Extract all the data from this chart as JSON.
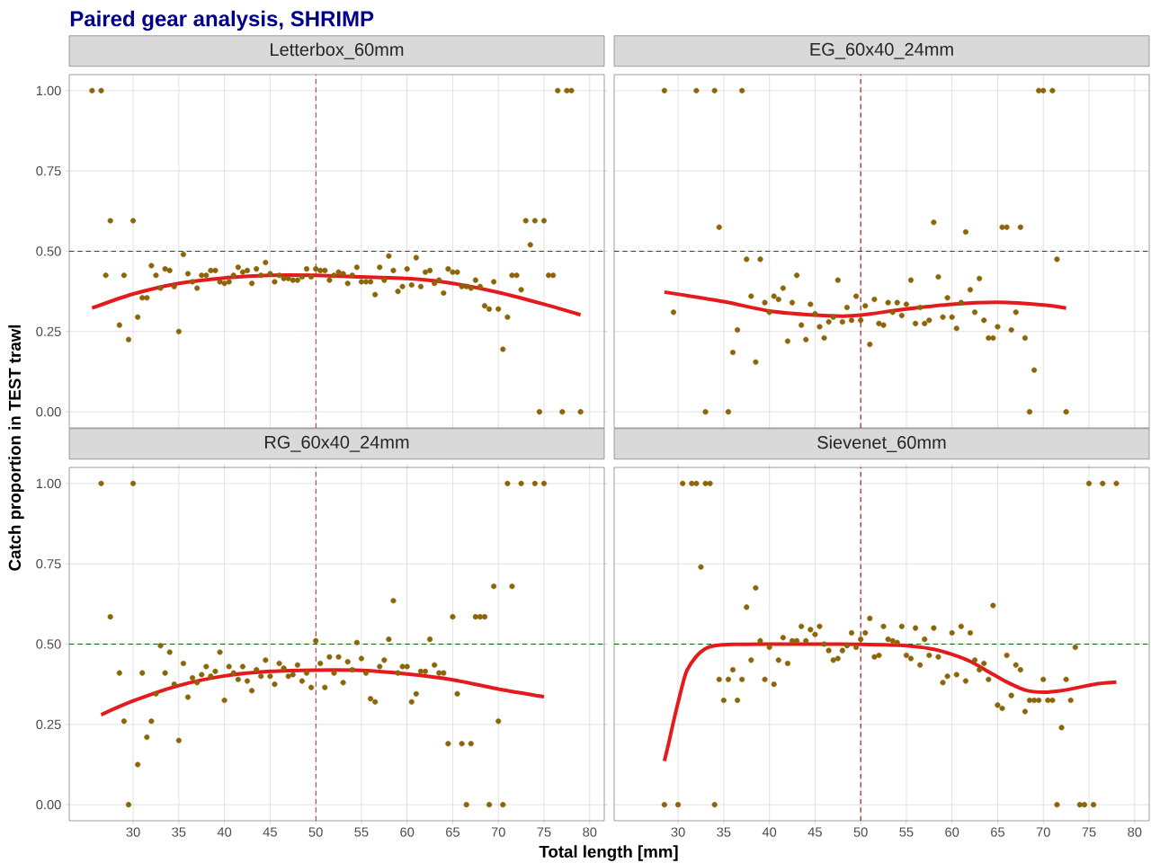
{
  "chart_data": [
    {
      "type": "scatter",
      "title": "Paired gear analysis, SHRIMP",
      "subtitle": "Letterbox_60mm",
      "ylabel": "Catch proportion in TEST trawl",
      "xlim": [
        23,
        81.6
      ],
      "ylim": [
        -0.05,
        1.05
      ],
      "xticks": [
        30,
        35,
        40,
        45,
        50,
        55,
        60,
        65,
        70,
        75,
        80
      ],
      "yticks": [
        {
          "value": 0,
          "label": "0.00"
        },
        {
          "value": 0.25,
          "label": "0.25"
        },
        {
          "value": 0.5,
          "label": "0.50"
        },
        {
          "value": 0.75,
          "label": "0.75"
        },
        {
          "value": 1,
          "label": "1.00"
        }
      ],
      "tick_labels": "y",
      "grid": true,
      "ref_lines": [
        {
          "axis": "y",
          "value": 0.5,
          "color": "#006400",
          "line_style": "dashed"
        },
        {
          "axis": "x",
          "value": 50,
          "color": "#8b0000",
          "line_style": "dashed"
        }
      ],
      "series": [
        {
          "type": "scatter",
          "marker": "circle",
          "color": "#8b6508",
          "x": [
            25.5,
            26.5,
            27,
            27.5,
            28.5,
            29,
            29.5,
            30,
            30.5,
            31,
            31.5,
            32,
            32.5,
            33,
            33.5,
            34,
            34.5,
            35,
            35.5,
            36,
            36.5,
            37,
            37.5,
            38,
            38.5,
            39,
            39.5,
            40,
            40.5,
            41,
            41.5,
            42,
            42.5,
            43,
            43.5,
            44,
            44.5,
            45,
            45.5,
            46,
            46.5,
            47,
            47.5,
            48,
            48.5,
            49,
            49.5,
            50,
            50.5,
            51,
            51.5,
            52,
            52.5,
            53,
            53.5,
            54,
            54.5,
            55,
            55.5,
            56,
            56.5,
            57,
            57.5,
            58,
            58.5,
            59,
            59.5,
            60,
            60.5,
            61,
            61.5,
            62,
            62.5,
            63,
            63.5,
            64,
            64.5,
            65,
            65.5,
            66,
            66.5,
            67,
            67.5,
            68,
            68.5,
            69,
            69.5,
            70,
            70.5,
            71,
            71.5,
            72,
            72.5,
            73,
            73.5,
            74,
            74.5,
            75,
            75.5,
            76,
            76.5,
            77,
            77.5,
            78,
            79
          ],
          "values": [
            1,
            1,
            0.425,
            0.595,
            0.27,
            0.425,
            0.225,
            0.595,
            0.295,
            0.355,
            0.355,
            0.455,
            0.425,
            0.385,
            0.445,
            0.44,
            0.39,
            0.25,
            0.49,
            0.43,
            0.405,
            0.385,
            0.425,
            0.425,
            0.44,
            0.44,
            0.405,
            0.4,
            0.405,
            0.425,
            0.45,
            0.435,
            0.44,
            0.4,
            0.445,
            0.425,
            0.465,
            0.43,
            0.405,
            0.425,
            0.415,
            0.415,
            0.41,
            0.41,
            0.42,
            0.445,
            0.42,
            0.445,
            0.44,
            0.44,
            0.41,
            0.425,
            0.435,
            0.43,
            0.4,
            0.425,
            0.45,
            0.405,
            0.405,
            0.405,
            0.365,
            0.45,
            0.41,
            0.485,
            0.44,
            0.375,
            0.39,
            0.445,
            0.395,
            0.48,
            0.39,
            0.435,
            0.44,
            0.4,
            0.41,
            0.37,
            0.445,
            0.435,
            0.435,
            0.39,
            0.39,
            0.385,
            0.41,
            0.39,
            0.33,
            0.32,
            0.405,
            0.32,
            0.195,
            0.295,
            0.425,
            0.425,
            0.38,
            0.595,
            0.52,
            0.595,
            0,
            0.595,
            0.425,
            0.425,
            1,
            0,
            1,
            1,
            0
          ]
        },
        {
          "type": "line",
          "line_style": "solid",
          "color": "#e41a1c",
          "x": [
            25.5,
            30,
            35,
            40,
            45,
            50,
            55,
            60,
            65,
            70,
            75,
            79
          ],
          "values": [
            0.323,
            0.367,
            0.4,
            0.417,
            0.425,
            0.425,
            0.42,
            0.415,
            0.4,
            0.372,
            0.335,
            0.302
          ]
        }
      ]
    },
    {
      "type": "scatter",
      "subtitle": "EG_60x40_24mm",
      "xlim": [
        23,
        81.6
      ],
      "ylim": [
        -0.05,
        1.05
      ],
      "xticks": [
        30,
        35,
        40,
        45,
        50,
        55,
        60,
        65,
        70,
        75,
        80
      ],
      "yticks": [
        {
          "value": 0,
          "label": null
        },
        {
          "value": 0.25,
          "label": null
        },
        {
          "value": 0.5,
          "label": null
        },
        {
          "value": 0.75,
          "label": null
        },
        {
          "value": 1,
          "label": null
        }
      ],
      "tick_labels": false,
      "grid": true,
      "ref_lines": [
        {
          "axis": "y",
          "value": 0.5,
          "color": "#006400",
          "line_style": "dashed"
        },
        {
          "axis": "x",
          "value": 50,
          "color": "#8b0000",
          "line_style": "dashed"
        }
      ],
      "series": [
        {
          "type": "scatter",
          "marker": "circle",
          "color": "#8b6508",
          "x": [
            28.5,
            29.5,
            32,
            33,
            34,
            34.5,
            35.5,
            36,
            36.5,
            37,
            37.5,
            38,
            38.5,
            39,
            39.5,
            40,
            40.5,
            41,
            41.5,
            42,
            42.5,
            43,
            43.5,
            44,
            44.5,
            45,
            45.5,
            46,
            46.5,
            47,
            47.5,
            48,
            48.5,
            49,
            49.5,
            50,
            50.5,
            51,
            51.5,
            52,
            52.5,
            53,
            53.5,
            54,
            54.5,
            55,
            55.5,
            56,
            56.5,
            57,
            57.5,
            58,
            58.5,
            59,
            59.5,
            60,
            60.5,
            61,
            61.5,
            62,
            62.5,
            63,
            63.5,
            64,
            64.5,
            65,
            65.5,
            66,
            66.5,
            67,
            67.5,
            68,
            68.5,
            69,
            69.5,
            70,
            71,
            71.5,
            72.5
          ],
          "values": [
            1,
            0.31,
            1,
            0,
            1,
            0.575,
            0,
            0.185,
            0.255,
            1,
            0.475,
            0.36,
            0.155,
            0.475,
            0.34,
            0.31,
            0.36,
            0.35,
            0.385,
            0.22,
            0.34,
            0.425,
            0.27,
            0.225,
            0.335,
            0.305,
            0.265,
            0.23,
            0.28,
            0.295,
            0.41,
            0.28,
            0.325,
            0.285,
            0.36,
            0.285,
            0.33,
            0.21,
            0.35,
            0.275,
            0.27,
            0.34,
            0.31,
            0.34,
            0.3,
            0.335,
            0.41,
            0.275,
            0.325,
            0.275,
            0.285,
            0.59,
            0.42,
            0.295,
            0.355,
            0.295,
            0.26,
            0.34,
            0.56,
            0.38,
            0.31,
            0.415,
            0.285,
            0.23,
            0.23,
            0.265,
            0.575,
            0.575,
            0.255,
            0.31,
            0.575,
            0.23,
            0,
            0.13,
            1,
            1,
            1,
            0.475,
            0
          ]
        },
        {
          "type": "line",
          "line_style": "solid",
          "color": "#e41a1c",
          "x": [
            28.5,
            35,
            40,
            45,
            48,
            50,
            55,
            60,
            65,
            70,
            72.5
          ],
          "values": [
            0.373,
            0.343,
            0.314,
            0.301,
            0.298,
            0.301,
            0.32,
            0.335,
            0.341,
            0.333,
            0.323
          ]
        }
      ]
    },
    {
      "type": "scatter",
      "subtitle": "RG_60x40_24mm",
      "xlim": [
        23,
        81.6
      ],
      "ylim": [
        -0.05,
        1.05
      ],
      "xticks": [
        30,
        35,
        40,
        45,
        50,
        55,
        60,
        65,
        70,
        75,
        80
      ],
      "yticks": [
        {
          "value": 0,
          "label": "0.00"
        },
        {
          "value": 0.25,
          "label": "0.25"
        },
        {
          "value": 0.5,
          "label": "0.50"
        },
        {
          "value": 0.75,
          "label": "0.75"
        },
        {
          "value": 1,
          "label": "1.00"
        }
      ],
      "grid": true,
      "ref_lines": [
        {
          "axis": "y",
          "value": 0.5,
          "color": "#006400",
          "line_style": "dashed"
        },
        {
          "axis": "x",
          "value": 50,
          "color": "#8b0000",
          "line_style": "dashed"
        }
      ],
      "series": [
        {
          "type": "scatter",
          "marker": "circle",
          "color": "#8b6508",
          "x": [
            26.5,
            27.5,
            28.5,
            29,
            29.5,
            30,
            30.5,
            31,
            31.5,
            32,
            32.5,
            33,
            33.5,
            34,
            34.5,
            35,
            35.5,
            36,
            36.5,
            37,
            37.5,
            38,
            38.5,
            39,
            39.5,
            40,
            40.5,
            41,
            41.5,
            42,
            42.5,
            43,
            43.5,
            44,
            44.5,
            45,
            45.5,
            46,
            46.5,
            47,
            47.5,
            48,
            48.5,
            49,
            49.5,
            50,
            50.5,
            51,
            51.5,
            52,
            52.5,
            53,
            53.5,
            54,
            54.5,
            55,
            55.5,
            56,
            56.5,
            57,
            57.5,
            58,
            58.5,
            59,
            59.5,
            60,
            60.5,
            61,
            61.5,
            62,
            62.5,
            63,
            63.5,
            64,
            64.5,
            65,
            65.5,
            66,
            66.5,
            67,
            67.5,
            68,
            68.5,
            69,
            69.5,
            70,
            70.5,
            71,
            71.5,
            72.5,
            74,
            75
          ],
          "values": [
            1,
            0.585,
            0.41,
            0.26,
            0,
            1,
            0.125,
            0.41,
            0.21,
            0.26,
            0.345,
            0.495,
            0.41,
            0.475,
            0.375,
            0.2,
            0.44,
            0.335,
            0.395,
            0.38,
            0.405,
            0.43,
            0.4,
            0.415,
            0.475,
            0.325,
            0.43,
            0.41,
            0.39,
            0.43,
            0.385,
            0.355,
            0.42,
            0.4,
            0.45,
            0.4,
            0.375,
            0.44,
            0.425,
            0.4,
            0.405,
            0.435,
            0.385,
            0.41,
            0.365,
            0.51,
            0.44,
            0.365,
            0.46,
            0.41,
            0.46,
            0.38,
            0.445,
            0.42,
            0.505,
            0.455,
            0.41,
            0.33,
            0.32,
            0.43,
            0.45,
            0.515,
            0.635,
            0.41,
            0.43,
            0.43,
            0.32,
            0.345,
            0.415,
            0.415,
            0.515,
            0.435,
            0.41,
            0.41,
            0.19,
            0.585,
            0.345,
            0.19,
            0,
            0.19,
            0.585,
            0.585,
            0.585,
            0,
            0.68,
            0.26,
            0,
            1,
            0.68,
            1,
            1,
            1
          ]
        },
        {
          "type": "line",
          "line_style": "solid",
          "color": "#e41a1c",
          "x": [
            26.5,
            30,
            35,
            40,
            45,
            50,
            55,
            60,
            65,
            70,
            75
          ],
          "values": [
            0.28,
            0.323,
            0.371,
            0.401,
            0.415,
            0.419,
            0.418,
            0.407,
            0.389,
            0.36,
            0.336
          ]
        }
      ]
    },
    {
      "type": "scatter",
      "subtitle": "Sievenet_60mm",
      "xlabel": "Total length [mm]",
      "xlim": [
        23,
        81.6
      ],
      "ylim": [
        -0.05,
        1.05
      ],
      "xticks": [
        30,
        35,
        40,
        45,
        50,
        55,
        60,
        65,
        70,
        75,
        80
      ],
      "yticks": [
        {
          "value": 0,
          "label": null
        },
        {
          "value": 0.25,
          "label": null
        },
        {
          "value": 0.5,
          "label": null
        },
        {
          "value": 0.75,
          "label": null
        },
        {
          "value": 1,
          "label": null
        }
      ],
      "tick_labels": "x",
      "grid": true,
      "ref_lines": [
        {
          "axis": "y",
          "value": 0.5,
          "color": "#006400",
          "line_style": "dashed"
        },
        {
          "axis": "x",
          "value": 50,
          "color": "#8b0000",
          "line_style": "dashed"
        }
      ],
      "series": [
        {
          "type": "scatter",
          "marker": "circle",
          "color": "#8b6508",
          "x": [
            28.5,
            30,
            30.5,
            31.5,
            32,
            32.5,
            33,
            33.5,
            34,
            34.5,
            35,
            35.5,
            36,
            36.5,
            37,
            37.5,
            38,
            38.5,
            39,
            39.5,
            40,
            40.5,
            41,
            41.5,
            42,
            42.5,
            43,
            43.5,
            44,
            44.5,
            45,
            45.5,
            46,
            46.5,
            47,
            47.5,
            48,
            48.5,
            49,
            49.5,
            50,
            50.5,
            51,
            51.5,
            52,
            52.5,
            53,
            53.5,
            54,
            54.5,
            55,
            55.5,
            56,
            56.5,
            57,
            57.5,
            58,
            58.5,
            59,
            59.5,
            60,
            60.5,
            61,
            61.5,
            62,
            62.5,
            63,
            63.5,
            64,
            64.5,
            65,
            65.5,
            66,
            66.5,
            67,
            67.5,
            68,
            68.5,
            69,
            69.5,
            70,
            70.5,
            71,
            71.5,
            72,
            72.5,
            73,
            73.5,
            74,
            74.5,
            75,
            75.5,
            76.5,
            78
          ],
          "values": [
            0,
            0,
            1,
            1,
            1,
            0.74,
            1,
            1,
            0,
            0.39,
            0.325,
            0.39,
            0.42,
            0.325,
            0.39,
            0.615,
            0.45,
            0.675,
            0.51,
            0.39,
            0.49,
            0.375,
            0.45,
            0.52,
            0.44,
            0.51,
            0.51,
            0.555,
            0.51,
            0.545,
            0.53,
            0.555,
            0.5,
            0.48,
            0.45,
            0.455,
            0.48,
            0.495,
            0.535,
            0.49,
            0.515,
            0.535,
            0.58,
            0.46,
            0.465,
            0.555,
            0.515,
            0.51,
            0.505,
            0.555,
            0.465,
            0.455,
            0.55,
            0.435,
            0.515,
            0.465,
            0.55,
            0.46,
            0.38,
            0.4,
            0.535,
            0.405,
            0.555,
            0.385,
            0.535,
            0.45,
            0.42,
            0.44,
            0.39,
            0.62,
            0.31,
            0.3,
            0.465,
            0.34,
            0.435,
            0.42,
            0.29,
            0.325,
            0.325,
            0.325,
            0.39,
            0.325,
            0.325,
            0,
            0.24,
            0.39,
            0.325,
            0.49,
            0,
            0,
            1,
            0,
            1,
            1
          ]
        },
        {
          "type": "line",
          "line_style": "solid",
          "color": "#e41a1c",
          "x": [
            28.5,
            29,
            29.5,
            30.5,
            31,
            32,
            33,
            34,
            36,
            40,
            45,
            50,
            55,
            58,
            60,
            62,
            64,
            66,
            68,
            70,
            72,
            74,
            76,
            78
          ],
          "values": [
            0.136,
            0.195,
            0.259,
            0.375,
            0.42,
            0.462,
            0.486,
            0.495,
            0.499,
            0.5,
            0.5,
            0.499,
            0.495,
            0.484,
            0.468,
            0.446,
            0.414,
            0.382,
            0.357,
            0.35,
            0.355,
            0.366,
            0.377,
            0.382
          ]
        }
      ]
    }
  ]
}
